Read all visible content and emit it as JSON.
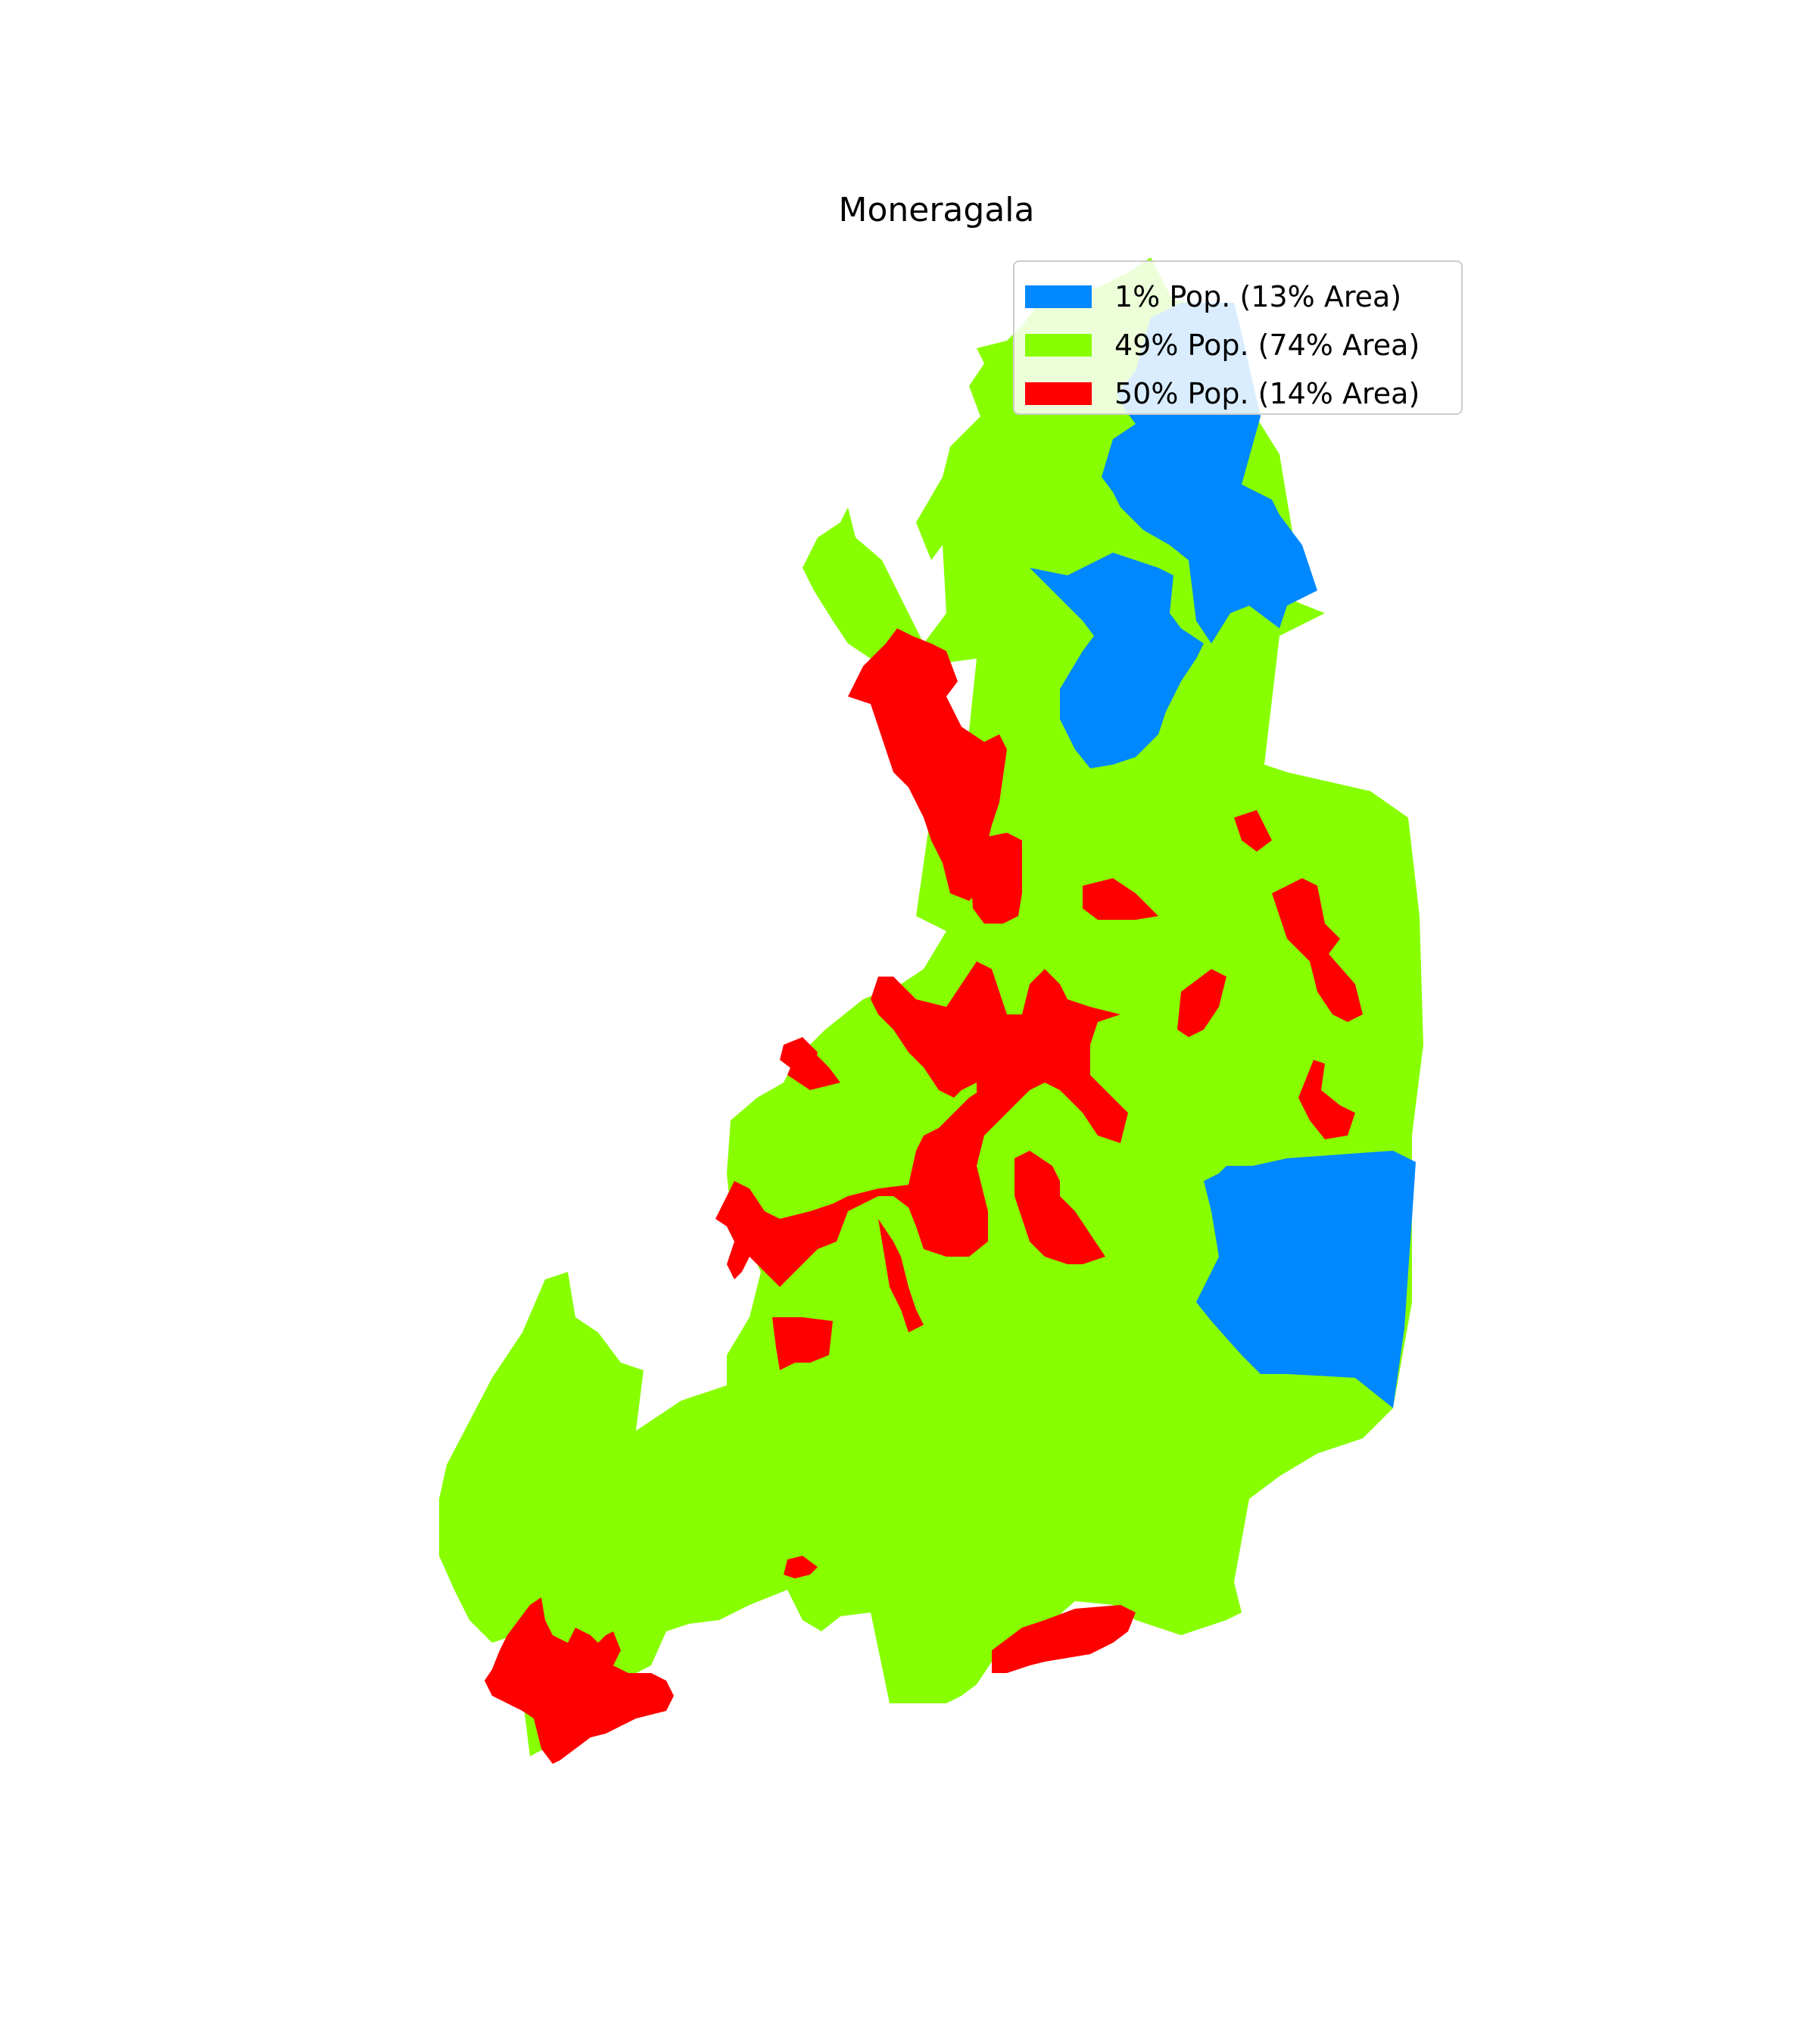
{
  "title": "Moneragala",
  "colors": {
    "low": "#0088ff",
    "mid": "#88ff00",
    "high": "#ff0000"
  },
  "legend": [
    {
      "label": "1% Pop. (13% Area)",
      "color": "#0088ff"
    },
    {
      "label": "49% Pop. (74% Area)",
      "color": "#88ff00"
    },
    {
      "label": "50% Pop. (14% Area)",
      "color": "#ff0000"
    }
  ]
}
